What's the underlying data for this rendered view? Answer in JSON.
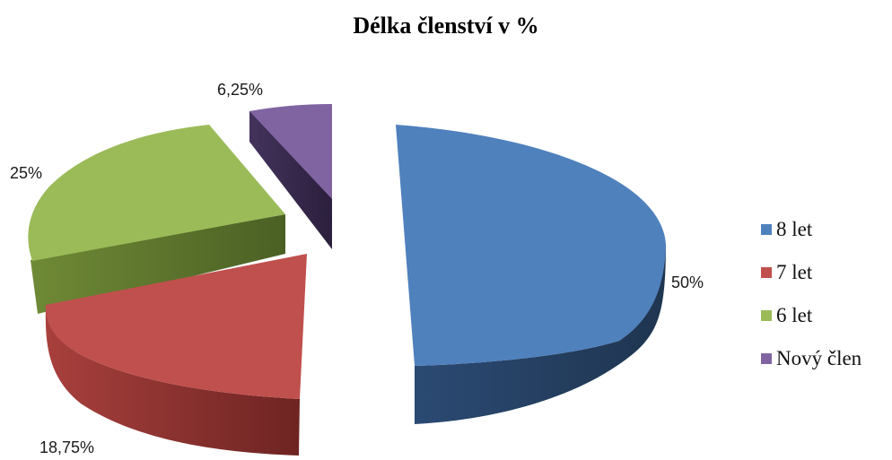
{
  "chart_data": {
    "type": "pie",
    "title": "Délka členství v %",
    "slices": [
      {
        "name": "8 let",
        "value": 50,
        "label": "50%",
        "color": "#4F81BD"
      },
      {
        "name": "7 let",
        "value": 18.75,
        "label": "18,75%",
        "color": "#C0504D"
      },
      {
        "name": "6 let",
        "value": 25,
        "label": "25%",
        "color": "#9BBB59"
      },
      {
        "name": "Nový člen",
        "value": 6.25,
        "label": "6,25%",
        "color": "#8064A2"
      }
    ],
    "legend_position": "right",
    "exploded": true
  }
}
